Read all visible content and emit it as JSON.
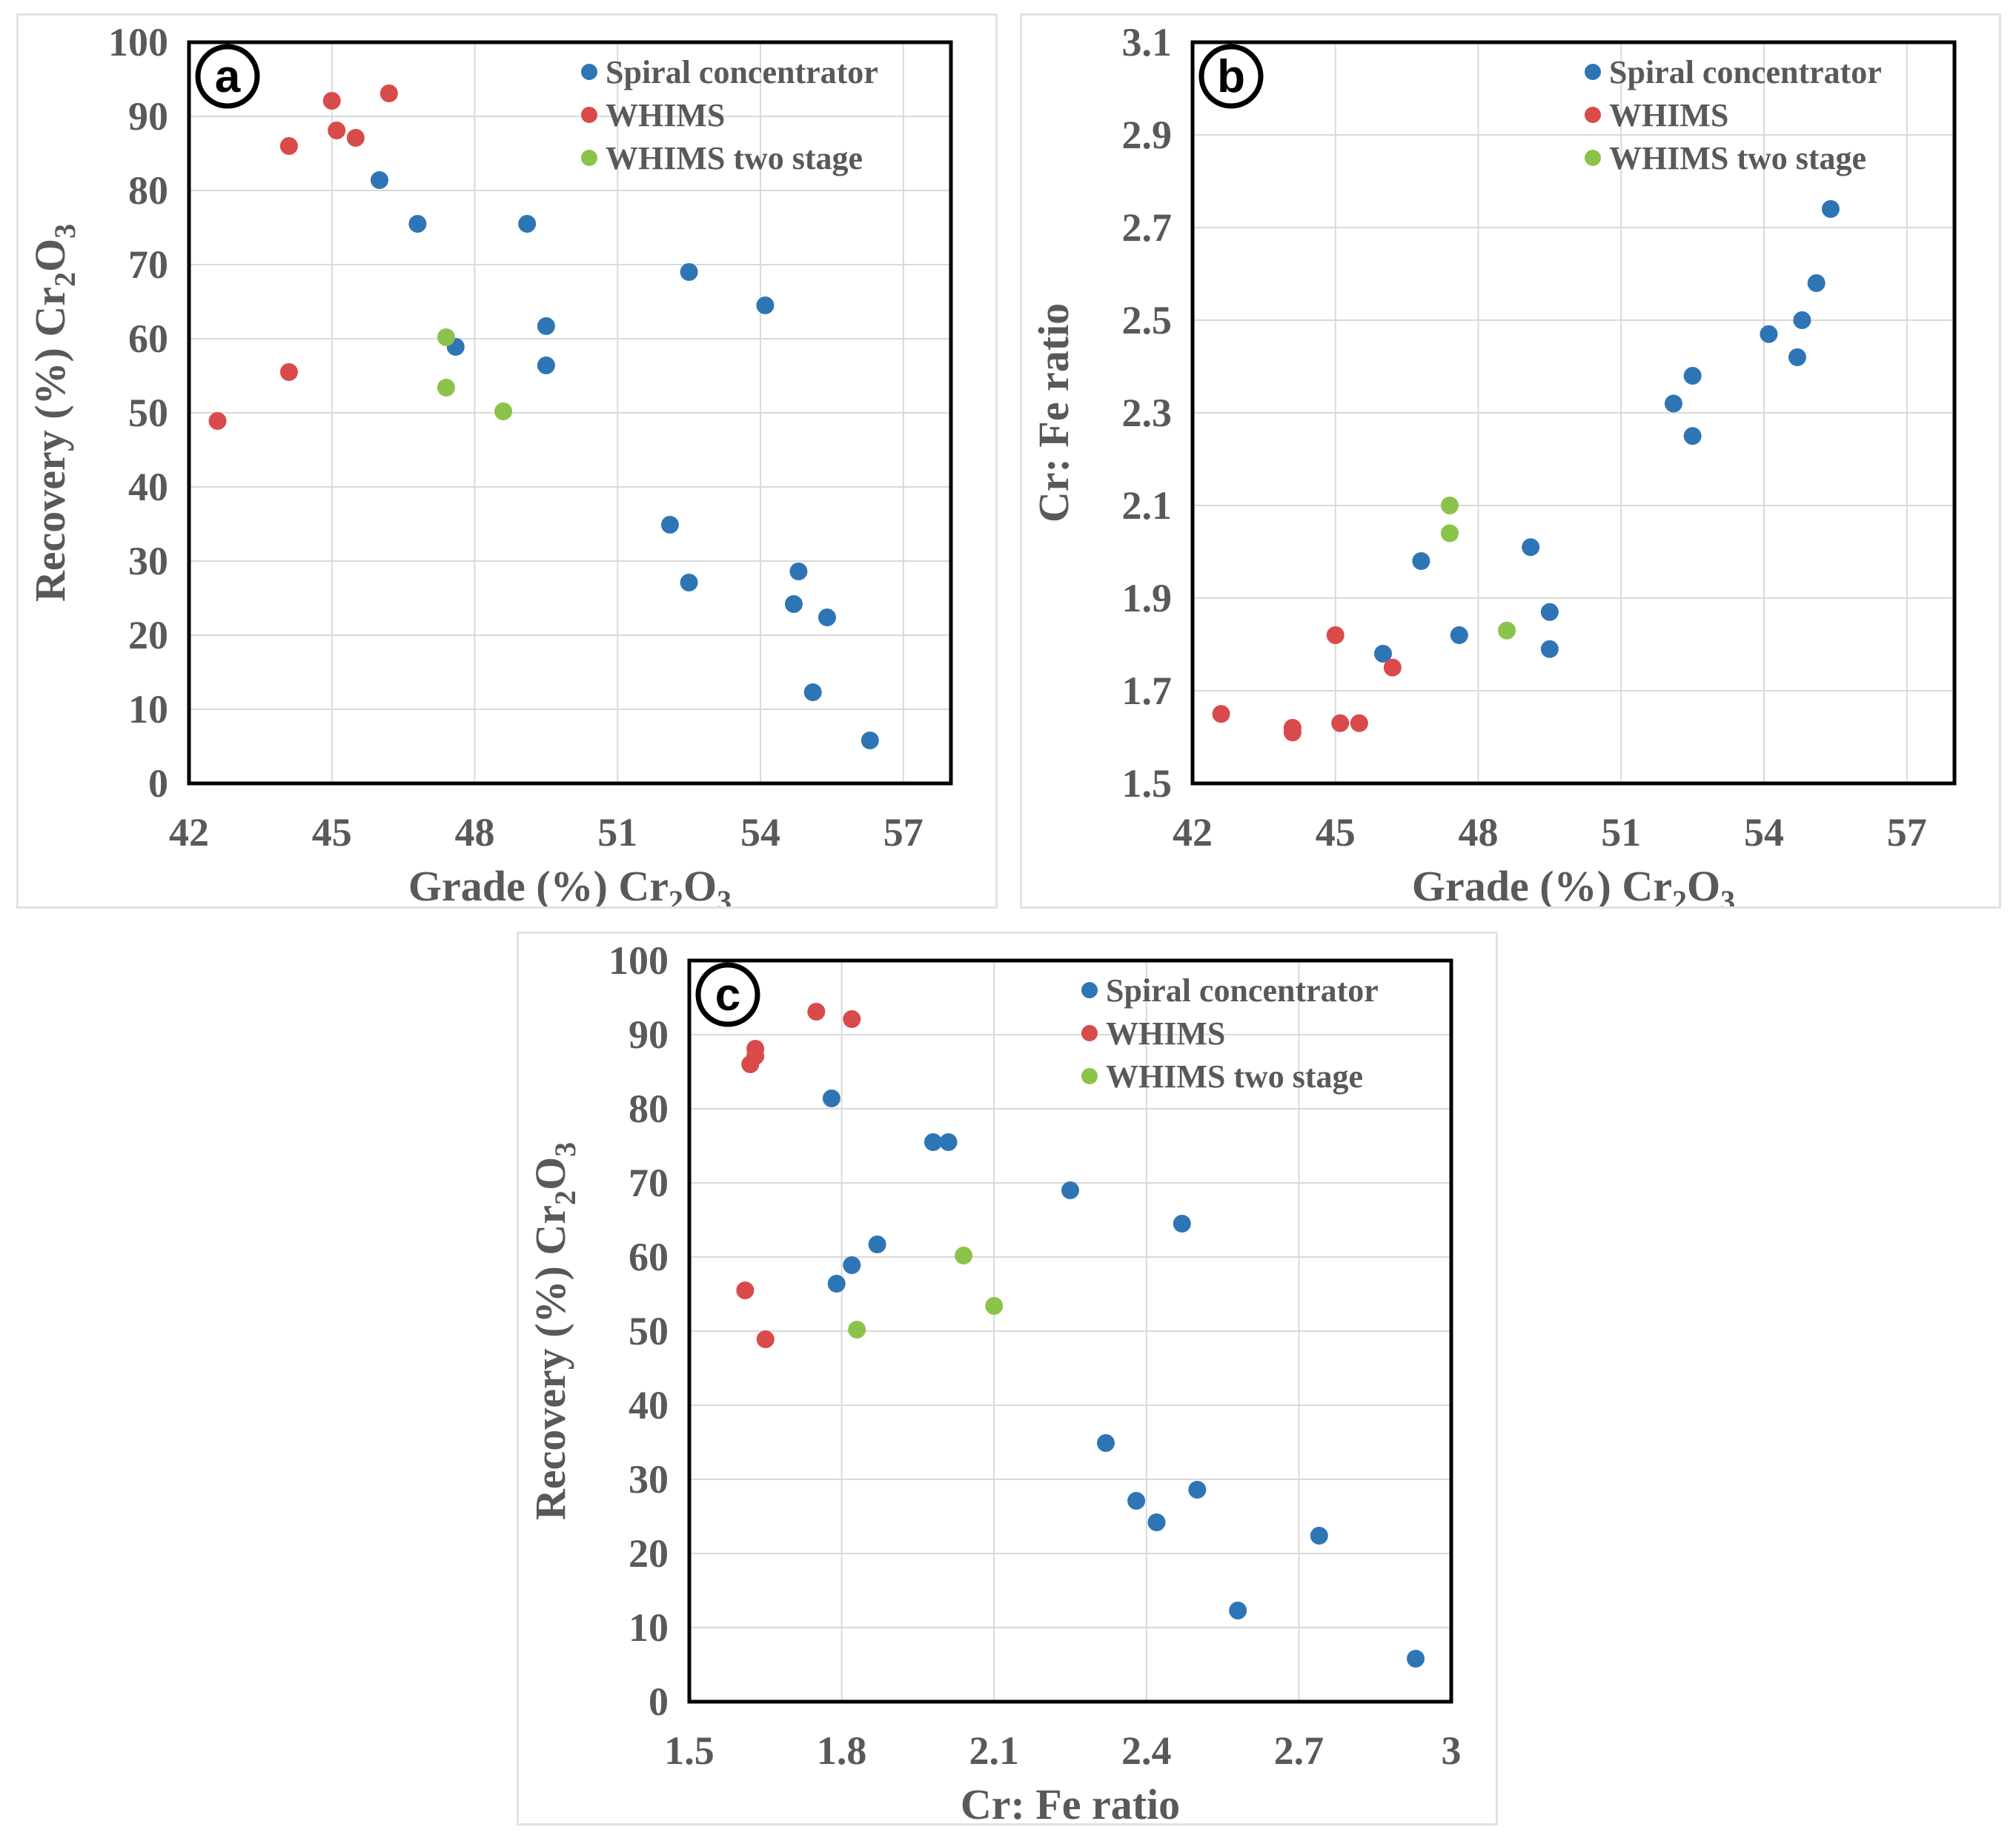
{
  "colors": {
    "spiral": "#2E75B6",
    "whims": "#D94A4A",
    "whims_two_stage": "#8BC34A",
    "grid": "#d9d9d9",
    "frame": "#000000"
  },
  "chart_data": [
    {
      "type": "scatter",
      "panel_label": "a",
      "xlabel_main": "Grade (%) Cr",
      "xlabel_parts": [
        "2",
        "O",
        "3"
      ],
      "ylabel_main": "Recovery (%) Cr",
      "ylabel_parts": [
        "2",
        "O",
        "3"
      ],
      "xlim": [
        42,
        58
      ],
      "ylim": [
        0,
        100
      ],
      "xticks": [
        42,
        45,
        48,
        51,
        54,
        57
      ],
      "yticks": [
        0,
        10,
        20,
        30,
        40,
        50,
        60,
        70,
        80,
        90,
        100
      ],
      "grid": true,
      "legend_position": "top-right",
      "series": [
        {
          "name": "Spiral concentrator",
          "color_key": "spiral",
          "points": [
            [
              46.0,
              81.4
            ],
            [
              46.8,
              75.5
            ],
            [
              49.1,
              75.5
            ],
            [
              47.6,
              58.9
            ],
            [
              49.5,
              61.7
            ],
            [
              49.5,
              56.4
            ],
            [
              52.5,
              69.0
            ],
            [
              54.1,
              64.5
            ],
            [
              52.1,
              34.9
            ],
            [
              52.5,
              27.1
            ],
            [
              54.8,
              28.6
            ],
            [
              54.7,
              24.2
            ],
            [
              55.4,
              22.4
            ],
            [
              55.1,
              12.3
            ],
            [
              56.3,
              5.8
            ]
          ]
        },
        {
          "name": "WHIMS",
          "color_key": "whims",
          "points": [
            [
              45.0,
              92.1
            ],
            [
              46.2,
              93.1
            ],
            [
              44.1,
              86.0
            ],
            [
              45.1,
              88.1
            ],
            [
              45.5,
              87.1
            ],
            [
              44.1,
              55.5
            ],
            [
              42.6,
              48.9
            ]
          ]
        },
        {
          "name": "WHIMS two stage",
          "color_key": "whims_two_stage",
          "points": [
            [
              47.4,
              60.2
            ],
            [
              47.4,
              53.4
            ],
            [
              48.6,
              50.2
            ]
          ]
        }
      ]
    },
    {
      "type": "scatter",
      "panel_label": "b",
      "xlabel_main": "Grade (%) Cr",
      "xlabel_parts": [
        "2",
        "O",
        "3"
      ],
      "ylabel": "Cr: Fe ratio",
      "xlim": [
        42,
        58
      ],
      "ylim": [
        1.5,
        3.1
      ],
      "xticks": [
        42,
        45,
        48,
        51,
        54,
        57
      ],
      "yticks": [
        1.5,
        1.7,
        1.9,
        2.1,
        2.3,
        2.5,
        2.7,
        2.9,
        3.1
      ],
      "ytick_labels": [
        "1.5",
        "1.7",
        "1.9",
        "2.1",
        "2.3",
        "2.5",
        "2.7",
        "2.9",
        "3.1"
      ],
      "grid": true,
      "legend_position": "top-right",
      "series": [
        {
          "name": "Spiral concentrator",
          "color_key": "spiral",
          "points": [
            [
              46.0,
              1.78
            ],
            [
              46.8,
              1.98
            ],
            [
              47.6,
              1.82
            ],
            [
              49.1,
              2.01
            ],
            [
              49.5,
              1.87
            ],
            [
              49.5,
              1.79
            ],
            [
              52.1,
              2.32
            ],
            [
              52.5,
              2.38
            ],
            [
              52.5,
              2.25
            ],
            [
              54.1,
              2.47
            ],
            [
              54.7,
              2.42
            ],
            [
              54.8,
              2.5
            ],
            [
              55.1,
              2.58
            ],
            [
              55.4,
              2.74
            ]
          ]
        },
        {
          "name": "WHIMS",
          "color_key": "whims",
          "points": [
            [
              42.6,
              1.65
            ],
            [
              44.1,
              1.62
            ],
            [
              44.1,
              1.61
            ],
            [
              45.0,
              1.82
            ],
            [
              45.1,
              1.63
            ],
            [
              45.5,
              1.63
            ],
            [
              46.2,
              1.75
            ]
          ]
        },
        {
          "name": "WHIMS two stage",
          "color_key": "whims_two_stage",
          "points": [
            [
              47.4,
              2.1
            ],
            [
              47.4,
              2.04
            ],
            [
              48.6,
              1.83
            ]
          ]
        }
      ]
    },
    {
      "type": "scatter",
      "panel_label": "c",
      "xlabel": "Cr: Fe ratio",
      "ylabel_main": "Recovery (%) Cr",
      "ylabel_parts": [
        "2",
        "O",
        "3"
      ],
      "xlim": [
        1.5,
        3.0
      ],
      "ylim": [
        0,
        100
      ],
      "xticks": [
        1.5,
        1.8,
        2.1,
        2.4,
        2.7,
        3.0
      ],
      "xtick_labels": [
        "1.5",
        "1.8",
        "2.1",
        "2.4",
        "2.7",
        "3"
      ],
      "yticks": [
        0,
        10,
        20,
        30,
        40,
        50,
        60,
        70,
        80,
        90,
        100
      ],
      "grid": true,
      "legend_position": "top-right",
      "series": [
        {
          "name": "Spiral concentrator",
          "color_key": "spiral",
          "points": [
            [
              1.78,
              81.4
            ],
            [
              1.98,
              75.5
            ],
            [
              2.01,
              75.5
            ],
            [
              2.25,
              69.0
            ],
            [
              2.47,
              64.5
            ],
            [
              1.87,
              61.7
            ],
            [
              1.82,
              58.9
            ],
            [
              1.79,
              56.4
            ],
            [
              2.32,
              34.9
            ],
            [
              2.38,
              27.1
            ],
            [
              2.5,
              28.6
            ],
            [
              2.42,
              24.2
            ],
            [
              2.74,
              22.4
            ],
            [
              2.58,
              12.3
            ],
            [
              2.93,
              5.8
            ]
          ]
        },
        {
          "name": "WHIMS",
          "color_key": "whims",
          "points": [
            [
              1.75,
              93.1
            ],
            [
              1.82,
              92.1
            ],
            [
              1.63,
              88.1
            ],
            [
              1.63,
              87.1
            ],
            [
              1.62,
              86.0
            ],
            [
              1.61,
              55.5
            ],
            [
              1.65,
              48.9
            ]
          ]
        },
        {
          "name": "WHIMS two stage",
          "color_key": "whims_two_stage",
          "points": [
            [
              2.04,
              60.2
            ],
            [
              2.1,
              53.4
            ],
            [
              1.83,
              50.2
            ]
          ]
        }
      ]
    }
  ]
}
